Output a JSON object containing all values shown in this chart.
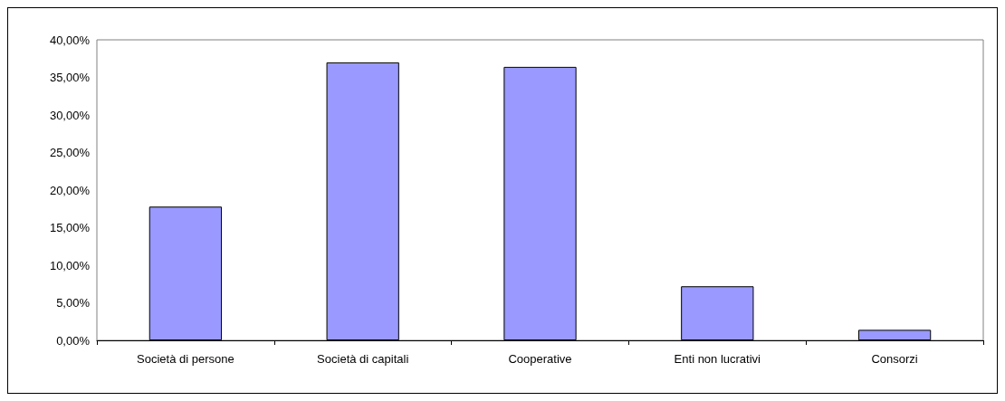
{
  "chart_data": {
    "type": "bar",
    "categories": [
      "Società di persone",
      "Società di capitali",
      "Cooperative",
      "Enti non lucrativi",
      "Consorzi"
    ],
    "values": [
      17.8,
      37.0,
      36.4,
      7.2,
      1.4
    ],
    "color": "#9999ff",
    "ylim": [
      0,
      40
    ],
    "yticks": [
      {
        "value": 0,
        "label": "0,00%"
      },
      {
        "value": 5,
        "label": "5,00%"
      },
      {
        "value": 10,
        "label": "10,00%"
      },
      {
        "value": 15,
        "label": "15,00%"
      },
      {
        "value": 20,
        "label": "20,00%"
      },
      {
        "value": 25,
        "label": "25,00%"
      },
      {
        "value": 30,
        "label": "30,00%"
      },
      {
        "value": 35,
        "label": "35,00%"
      },
      {
        "value": 40,
        "label": "40,00%"
      }
    ],
    "grid": false
  }
}
